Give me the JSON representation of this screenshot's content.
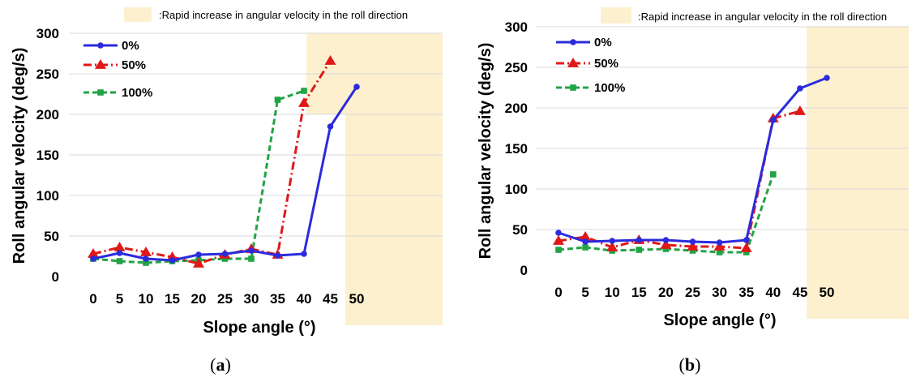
{
  "colors": {
    "highlight": "#fdf0cf",
    "series_0": "#2b2bdd",
    "series_50": "#e01818",
    "series_100": "#22a345"
  },
  "chart_data": [
    {
      "type": "line",
      "panel_prefix": "(",
      "panel_letter": "a",
      "panel_suffix": ")",
      "highlight_note": ":Rapid increase in angular velocity in the roll direction",
      "xlabel": "Slope angle (°)",
      "ylabel": "Roll angular velocity (deg/s)",
      "x": [
        0,
        5,
        10,
        15,
        20,
        25,
        30,
        35,
        40,
        45,
        50
      ],
      "x_tick_labels": [
        "0",
        "5",
        "10",
        "15",
        "20",
        "25",
        "30",
        "35",
        "40",
        "45",
        "50"
      ],
      "ylim": [
        0,
        300
      ],
      "y_ticks": [
        0,
        50,
        100,
        150,
        200,
        250,
        300
      ],
      "y_tick_labels": [
        "0",
        "50",
        "100",
        "150",
        "200",
        "250",
        "300"
      ],
      "legend_position": "top-left",
      "series": [
        {
          "name": "0%",
          "key": "s0",
          "marker": "circle",
          "dash": "solid",
          "values": [
            22,
            29,
            22,
            20,
            27,
            28,
            32,
            26,
            28,
            185,
            234
          ]
        },
        {
          "name": "50%",
          "key": "s50",
          "marker": "triangle",
          "dash": "dashdot",
          "values": [
            28,
            36,
            30,
            24,
            16,
            27,
            34,
            27,
            214,
            266,
            null
          ]
        },
        {
          "name": "100%",
          "key": "s100",
          "marker": "square",
          "dash": "dashed",
          "values": [
            22,
            19,
            17,
            19,
            20,
            22,
            22,
            218,
            229,
            null,
            null
          ]
        }
      ]
    },
    {
      "type": "line",
      "panel_prefix": "(",
      "panel_letter": "b",
      "panel_suffix": ")",
      "highlight_note": ":Rapid increase in angular velocity in the roll direction",
      "xlabel": "Slope angle (°)",
      "ylabel": "Roll angular velocity (deg/s)",
      "x": [
        0,
        5,
        10,
        15,
        20,
        25,
        30,
        35,
        40,
        45,
        50
      ],
      "x_tick_labels": [
        "0",
        "5",
        "10",
        "15",
        "20",
        "25",
        "30",
        "35",
        "40",
        "45",
        "50"
      ],
      "ylim": [
        0,
        300
      ],
      "y_ticks": [
        0,
        50,
        100,
        150,
        200,
        250,
        300
      ],
      "y_tick_labels": [
        "0",
        "50",
        "100",
        "150",
        "200",
        "250",
        "300"
      ],
      "legend_position": "top-left",
      "series": [
        {
          "name": "0%",
          "key": "s0",
          "marker": "circle",
          "dash": "solid",
          "values": [
            46,
            35,
            36,
            37,
            37,
            35,
            34,
            37,
            185,
            224,
            237
          ]
        },
        {
          "name": "50%",
          "key": "s50",
          "marker": "triangle",
          "dash": "dashdot",
          "values": [
            36,
            41,
            28,
            37,
            31,
            29,
            29,
            27,
            187,
            196,
            null
          ]
        },
        {
          "name": "100%",
          "key": "s100",
          "marker": "square",
          "dash": "dashed",
          "values": [
            25,
            28,
            24,
            25,
            26,
            24,
            22,
            22,
            118,
            null,
            null
          ]
        }
      ]
    }
  ]
}
